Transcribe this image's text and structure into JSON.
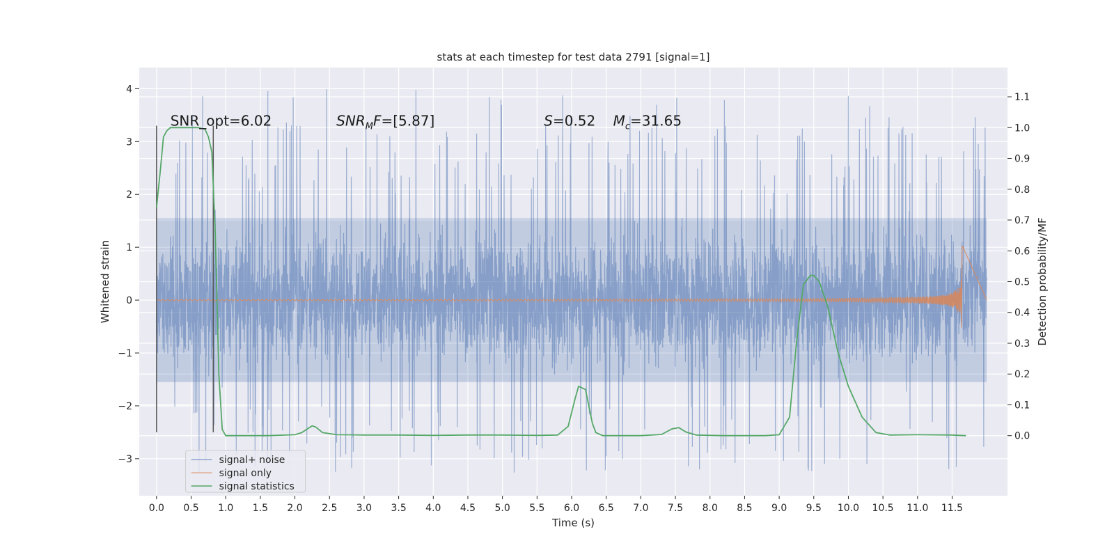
{
  "chart_data": {
    "type": "line",
    "title": "stats at each timestep for test data 2791 [signal=1]",
    "xlabel": "Time (s)",
    "ylabel": "Whitened strain",
    "y2label": "Detection probability/MF",
    "xlim": [
      -0.25,
      12.3
    ],
    "ylim": [
      -3.7,
      4.4
    ],
    "y2lim": [
      -0.195,
      1.195
    ],
    "x_ticks": [
      0.0,
      0.5,
      1.0,
      1.5,
      2.0,
      2.5,
      3.0,
      3.5,
      4.0,
      4.5,
      5.0,
      5.5,
      6.0,
      6.5,
      7.0,
      7.5,
      8.0,
      8.5,
      9.0,
      9.5,
      10.0,
      10.5,
      11.0,
      11.5
    ],
    "x_tick_labels": [
      "0.0",
      "0.5",
      "1.0",
      "1.5",
      "2.0",
      "2.5",
      "3.0",
      "3.5",
      "4.0",
      "4.5",
      "5.0",
      "5.5",
      "6.0",
      "6.5",
      "7.0",
      "7.5",
      "8.0",
      "8.5",
      "9.0",
      "9.5",
      "10.0",
      "10.5",
      "11.0",
      "11.5"
    ],
    "y_ticks": [
      -3,
      -2,
      -1,
      0,
      1,
      2,
      3,
      4
    ],
    "y_tick_labels": [
      "−3",
      "−2",
      "−1",
      "0",
      "1",
      "2",
      "3",
      "4"
    ],
    "y2_ticks": [
      0.0,
      0.1,
      0.2,
      0.3,
      0.4,
      0.5,
      0.6,
      0.7,
      0.8,
      0.9,
      1.0,
      1.1
    ],
    "y2_tick_labels": [
      "0.0",
      "0.1",
      "0.2",
      "0.3",
      "0.4",
      "0.5",
      "0.6",
      "0.7",
      "0.8",
      "0.9",
      "1.0",
      "1.1"
    ],
    "grid": true,
    "legend_position": "bottom-left",
    "series": [
      {
        "name": "signal+ noise",
        "color": "#4c72b0",
        "axis": "left",
        "x_range": [
          0.0,
          12.0
        ],
        "core_band": [
          -1.55,
          1.55
        ],
        "spike_range": [
          -3.3,
          4.1
        ]
      },
      {
        "name": "signal only",
        "color": "#dd8452",
        "axis": "left",
        "x_range": [
          0.0,
          12.0
        ],
        "chirp_end": 11.65,
        "peak_amplitude": 1.25
      },
      {
        "name": "signal statistics",
        "color": "#55a868",
        "axis": "right",
        "x": [
          0.0,
          0.05,
          0.1,
          0.15,
          0.2,
          0.3,
          0.4,
          0.5,
          0.6,
          0.7,
          0.75,
          0.8,
          0.85,
          0.9,
          0.95,
          1.0,
          1.1,
          1.3,
          1.6,
          2.0,
          2.1,
          2.2,
          2.25,
          2.3,
          2.4,
          2.6,
          3.0,
          3.5,
          4.0,
          4.5,
          5.0,
          5.5,
          5.8,
          5.95,
          6.05,
          6.1,
          6.2,
          6.3,
          6.35,
          6.45,
          6.6,
          7.0,
          7.3,
          7.45,
          7.55,
          7.65,
          7.8,
          8.2,
          8.8,
          9.0,
          9.15,
          9.25,
          9.35,
          9.45,
          9.5,
          9.58,
          9.7,
          9.85,
          10.0,
          10.2,
          10.4,
          10.6,
          11.0,
          11.5,
          11.6,
          11.7
        ],
        "y": [
          0.74,
          0.85,
          0.97,
          0.99,
          1.0,
          1.0,
          1.0,
          1.0,
          1.0,
          0.995,
          0.97,
          0.92,
          0.65,
          0.2,
          0.02,
          0.0,
          0.0,
          0.0,
          0.0,
          0.003,
          0.01,
          0.025,
          0.032,
          0.028,
          0.01,
          0.003,
          0.002,
          0.002,
          0.001,
          0.002,
          0.002,
          0.001,
          0.002,
          0.03,
          0.12,
          0.16,
          0.15,
          0.04,
          0.01,
          0.0,
          0.0,
          0.0,
          0.004,
          0.022,
          0.026,
          0.012,
          0.002,
          0.0,
          0.0,
          0.003,
          0.06,
          0.3,
          0.49,
          0.52,
          0.52,
          0.5,
          0.42,
          0.27,
          0.16,
          0.06,
          0.01,
          0.002,
          0.003,
          0.002,
          0.001,
          0.0
        ]
      }
    ],
    "vertical_markers": [
      {
        "x": 0.0,
        "color": "#555555",
        "ymin": -2.5,
        "ymax": 3.3
      },
      {
        "x": 0.82,
        "color": "#555555",
        "ymin": -2.5,
        "ymax": 3.3
      }
    ],
    "annotations": [
      {
        "text": "SNR_opt=6.02",
        "x": 0.2,
        "y": 3.3
      },
      {
        "text": "SNR_MF=[5.87]",
        "x": 2.6,
        "y": 3.3
      },
      {
        "text": "S=0.52",
        "x": 5.6,
        "y": 3.3
      },
      {
        "text": "M_c=31.65",
        "x": 6.6,
        "y": 3.3
      }
    ]
  }
}
